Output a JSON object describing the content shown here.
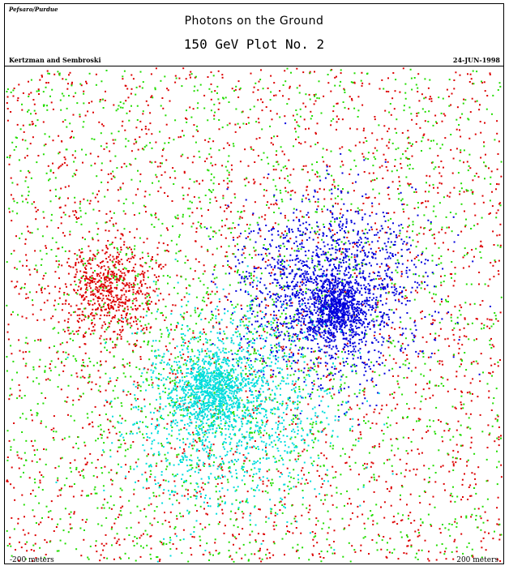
{
  "header": {
    "corner_label": "Pefsaro/Purdue",
    "title": "Photons on the Ground",
    "subtitle": "150 GeV Plot No. 2",
    "authors": "Kertzman and Sembroski",
    "date": "24-JUN-1998"
  },
  "chart_data": {
    "type": "scatter",
    "title": "Photons on the Ground",
    "subtitle": "150 GeV Plot No. 2",
    "xlabel": "",
    "ylabel": "",
    "x_range_label_left": "-200 meters",
    "x_range_label_right": "200 meters",
    "xlim": [
      -200,
      200
    ],
    "ylim": [
      -200,
      200
    ],
    "grid": false,
    "legend": "none",
    "series": [
      {
        "color": "#dd0000",
        "distribution": "diffuse background plus concentrated clump",
        "uniform_count": 2400,
        "clumps": [
          {
            "center": [
              -115,
              20
            ],
            "sigma": 18,
            "count": 550
          }
        ]
      },
      {
        "color": "#22dd00",
        "distribution": "diffuse background plus broad halo",
        "uniform_count": 1900,
        "clumps": [
          {
            "center": [
              -40,
              -50
            ],
            "sigma": 55,
            "count": 500
          }
        ]
      },
      {
        "color": "#0000dd",
        "distribution": "dense core with surrounding disc",
        "uniform_count": 0,
        "clumps": [
          {
            "center": [
              65,
              5
            ],
            "sigma": 12,
            "count": 650
          },
          {
            "center": [
              60,
              20
            ],
            "sigma": 36,
            "count": 1600
          }
        ]
      },
      {
        "color": "#00dddd",
        "distribution": "dense core with surrounding disc",
        "uniform_count": 0,
        "clumps": [
          {
            "center": [
              -35,
              -58
            ],
            "sigma": 14,
            "count": 700
          },
          {
            "center": [
              -20,
              -78
            ],
            "sigma": 40,
            "count": 1300
          }
        ]
      }
    ]
  }
}
